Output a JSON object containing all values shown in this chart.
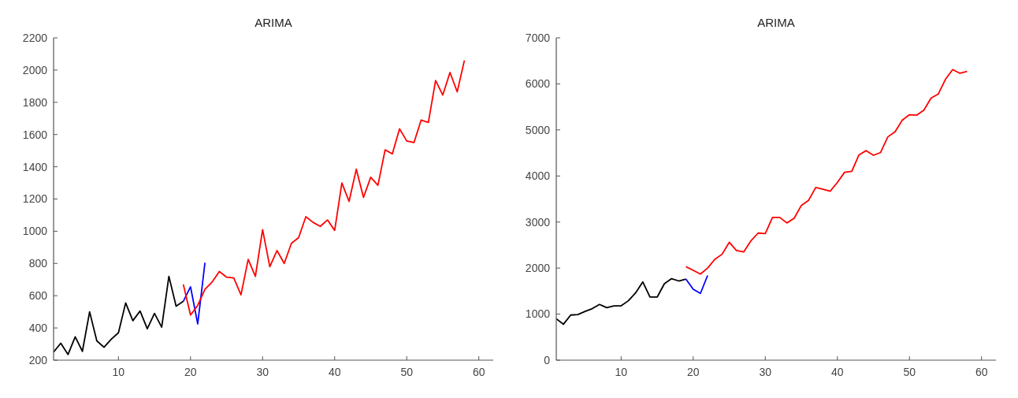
{
  "chart_data": [
    {
      "type": "line",
      "title": "ARIMA",
      "xlim": [
        1,
        62
      ],
      "xticks": [
        10,
        20,
        30,
        40,
        50,
        60
      ],
      "ylim": [
        200,
        2200
      ],
      "yticks": [
        200,
        400,
        600,
        800,
        1000,
        1200,
        1400,
        1600,
        1800,
        2000,
        2200
      ],
      "grid": false,
      "series": [
        {
          "color": "#000000",
          "x": [
            1,
            2,
            3,
            4,
            5,
            6,
            7,
            8,
            9,
            10,
            11,
            12,
            13,
            14,
            15,
            16,
            17,
            18,
            19
          ],
          "values": [
            250,
            305,
            235,
            345,
            255,
            500,
            320,
            280,
            330,
            370,
            555,
            445,
            505,
            395,
            490,
            405,
            720,
            535,
            565
          ]
        },
        {
          "color": "#0000ff",
          "x": [
            19,
            20,
            21,
            22
          ],
          "values": [
            565,
            655,
            425,
            805
          ]
        },
        {
          "color": "#ff0000",
          "x": [
            19,
            20,
            21,
            22,
            23,
            24,
            25,
            26,
            27,
            28,
            29,
            30,
            31,
            32,
            33,
            34,
            35,
            36,
            37,
            38,
            39,
            40,
            41,
            42,
            43,
            44,
            45,
            46,
            47,
            48,
            49,
            50,
            51,
            52,
            53,
            54,
            55,
            56,
            57,
            58
          ],
          "values": [
            670,
            480,
            540,
            640,
            685,
            750,
            715,
            710,
            605,
            825,
            720,
            1010,
            780,
            880,
            800,
            925,
            960,
            1090,
            1055,
            1030,
            1070,
            1005,
            1300,
            1185,
            1385,
            1210,
            1335,
            1285,
            1505,
            1480,
            1635,
            1560,
            1550,
            1690,
            1675,
            1935,
            1845,
            1985,
            1865,
            2060
          ]
        }
      ]
    },
    {
      "type": "line",
      "title": "ARIMA",
      "xlim": [
        1,
        62
      ],
      "xticks": [
        10,
        20,
        30,
        40,
        50,
        60
      ],
      "ylim": [
        0,
        7000
      ],
      "yticks": [
        0,
        1000,
        2000,
        3000,
        4000,
        5000,
        6000,
        7000
      ],
      "grid": false,
      "series": [
        {
          "color": "#000000",
          "x": [
            1,
            2,
            3,
            4,
            5,
            6,
            7,
            8,
            9,
            10,
            11,
            12,
            13,
            14,
            15,
            16,
            17,
            18,
            19
          ],
          "values": [
            900,
            780,
            980,
            990,
            1060,
            1120,
            1210,
            1140,
            1180,
            1180,
            1290,
            1460,
            1700,
            1370,
            1370,
            1660,
            1770,
            1720,
            1760
          ]
        },
        {
          "color": "#0000ff",
          "x": [
            19,
            20,
            21,
            22
          ],
          "values": [
            1760,
            1540,
            1450,
            1840
          ]
        },
        {
          "color": "#ff0000",
          "x": [
            19,
            20,
            21,
            22,
            23,
            24,
            25,
            26,
            27,
            28,
            29,
            30,
            31,
            32,
            33,
            34,
            35,
            36,
            37,
            38,
            39,
            40,
            41,
            42,
            43,
            44,
            45,
            46,
            47,
            48,
            49,
            50,
            51,
            52,
            53,
            54,
            55,
            56,
            57,
            58
          ],
          "values": [
            2030,
            1950,
            1870,
            2000,
            2190,
            2300,
            2560,
            2380,
            2350,
            2590,
            2760,
            2750,
            3100,
            3100,
            2980,
            3080,
            3360,
            3470,
            3750,
            3710,
            3670,
            3860,
            4080,
            4100,
            4460,
            4550,
            4450,
            4510,
            4850,
            4960,
            5210,
            5330,
            5320,
            5430,
            5690,
            5780,
            6100,
            6310,
            6230,
            6270
          ]
        }
      ]
    }
  ]
}
